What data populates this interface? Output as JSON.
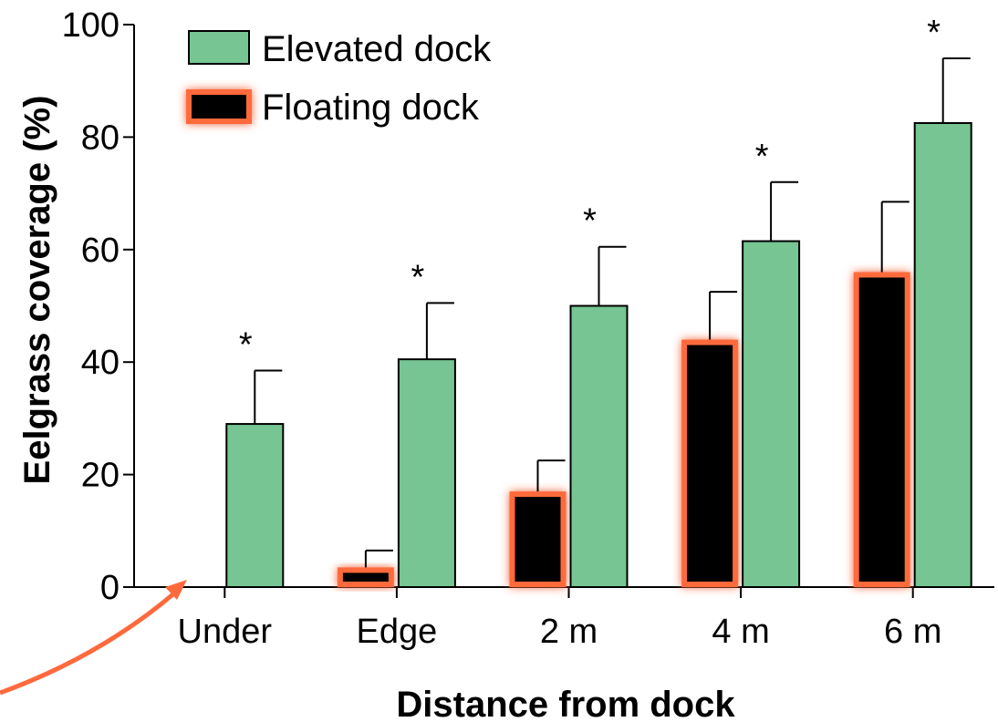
{
  "chart_data": {
    "type": "bar",
    "title": "",
    "xlabel": "Distance from dock",
    "ylabel": "Eelgrass coverage (%)",
    "ylim": [
      0,
      100
    ],
    "yticks": [
      "0",
      "20",
      "40",
      "60",
      "80",
      "100"
    ],
    "categories": [
      "Under",
      "Edge",
      "2 m",
      "4 m",
      "6 m"
    ],
    "series": [
      {
        "name": "Floating dock",
        "values": [
          0,
          3.5,
          17,
          44,
          56
        ],
        "error": [
          0,
          3,
          5.5,
          8.5,
          12.5
        ],
        "color": "#000000",
        "stroke": "#ff6a3d"
      },
      {
        "name": "Elevated dock",
        "values": [
          29,
          40.5,
          50,
          61.5,
          82.5
        ],
        "error": [
          9.5,
          10,
          10.5,
          10.5,
          11.5
        ],
        "color": "#76c593",
        "stroke": "#000000"
      }
    ],
    "annotations": [
      "*",
      "*",
      "*",
      "*",
      "*"
    ],
    "legend_position": "top-left",
    "grid": false
  }
}
